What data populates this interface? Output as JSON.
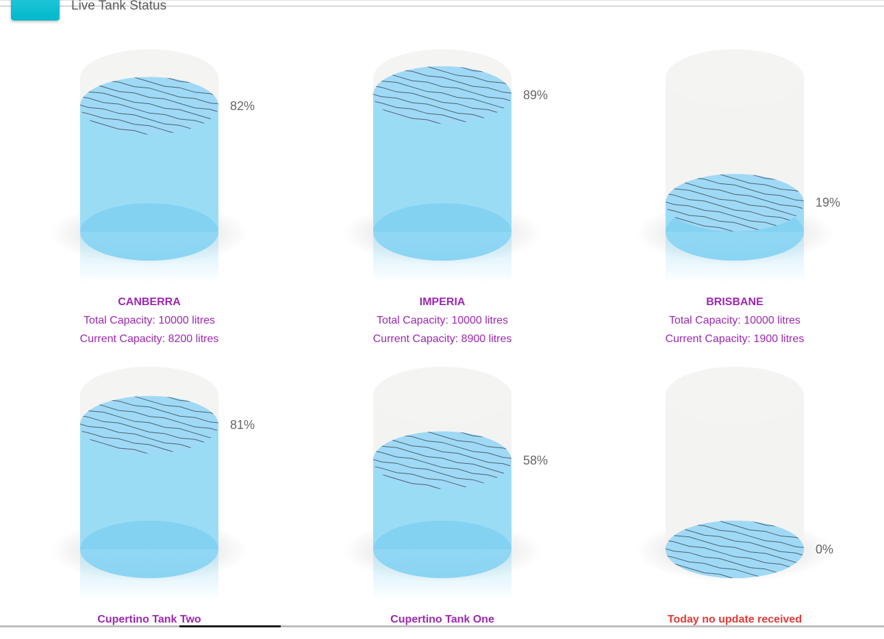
{
  "header": {
    "title": "Live Tank Status"
  },
  "colors": {
    "water": "#9bdcf5",
    "water_surface": "#9fd9f5",
    "water_bottom": "#84d2f2",
    "empty_tank": "#f3f3f2",
    "label": "#9c27b0",
    "alert": "#e53935"
  },
  "tanks": [
    {
      "name": "CANBERRA",
      "percent_label": "82%",
      "level": 0.82,
      "total": "Total Capacity: 10000 litres",
      "current": "Current Capacity: 8200 litres",
      "alert": false
    },
    {
      "name": "IMPERIA",
      "percent_label": "89%",
      "level": 0.89,
      "total": "Total Capacity: 10000 litres",
      "current": "Current Capacity: 8900 litres",
      "alert": false
    },
    {
      "name": "BRISBANE",
      "percent_label": "19%",
      "level": 0.19,
      "total": "Total Capacity: 10000 litres",
      "current": "Current Capacity: 1900 litres",
      "alert": false
    },
    {
      "name": "Cupertino Tank Two",
      "percent_label": "81%",
      "level": 0.81,
      "total": "",
      "current": "",
      "alert": false
    },
    {
      "name": "Cupertino Tank One",
      "percent_label": "58%",
      "level": 0.58,
      "total": "",
      "current": "",
      "alert": false
    },
    {
      "name": "Today no update received",
      "percent_label": "0%",
      "level": 0.0,
      "total": "",
      "current": "",
      "alert": true
    }
  ]
}
